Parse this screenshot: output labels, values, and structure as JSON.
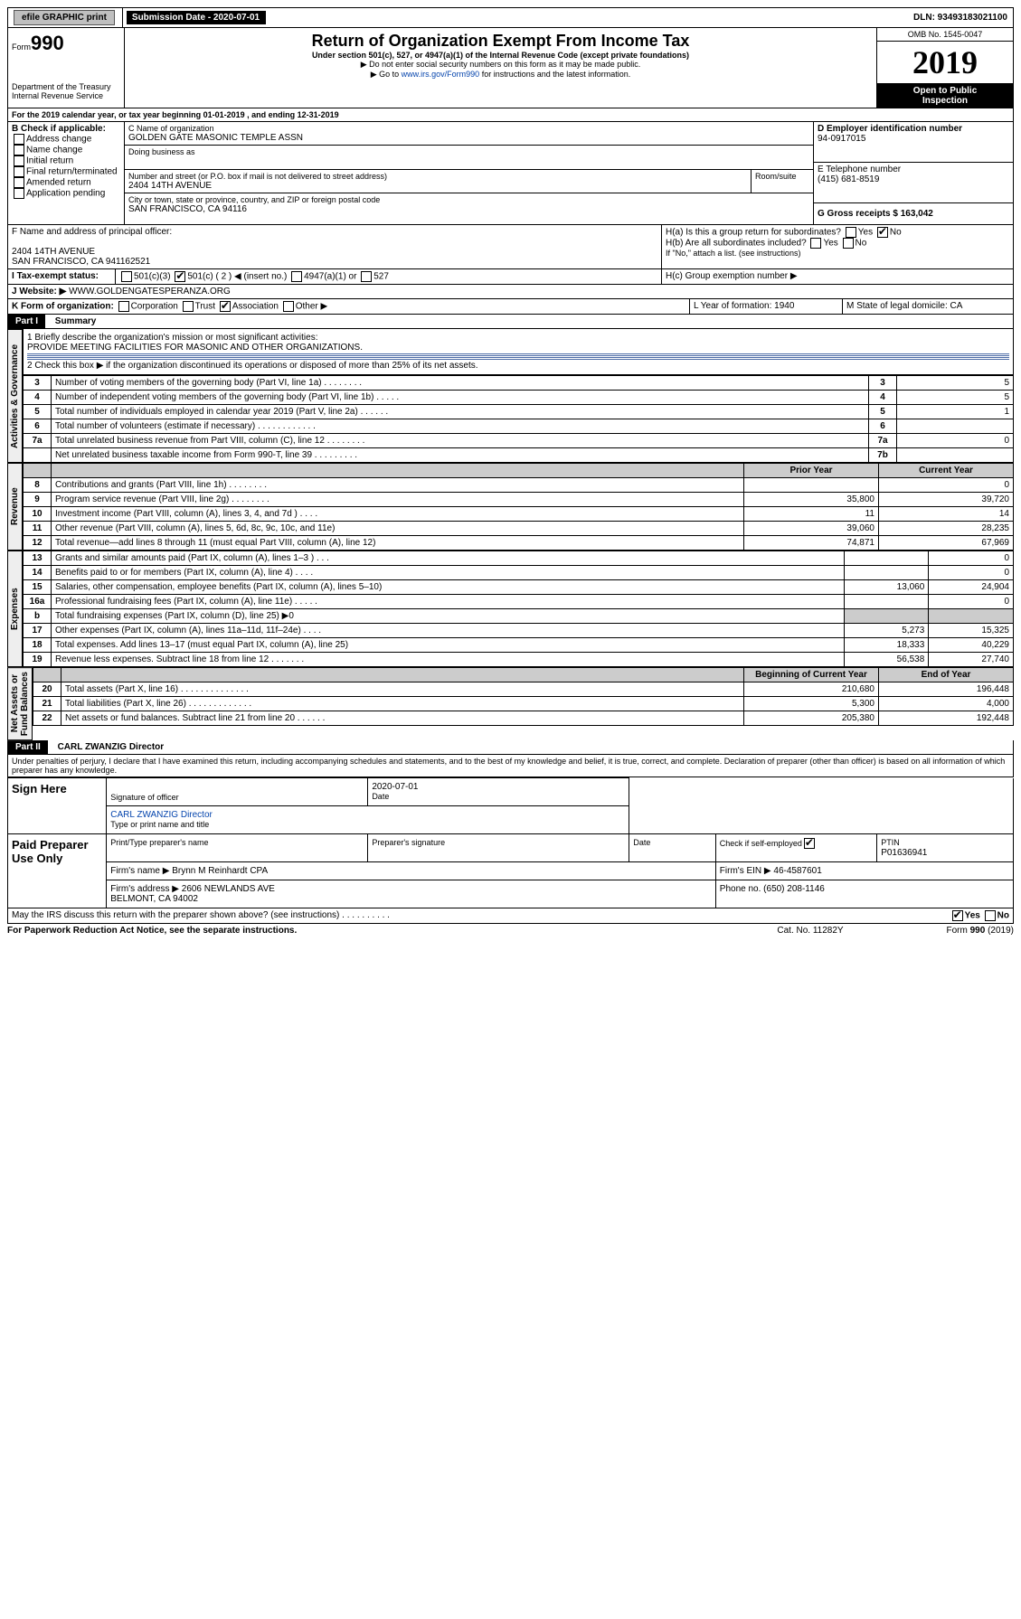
{
  "topbar": {
    "efile": "efile GRAPHIC print",
    "subdate_lbl": "Submission Date - 2020-07-01",
    "dln": "DLN: 93493183021100"
  },
  "header": {
    "form": "Form",
    "n990": "990",
    "title": "Return of Organization Exempt From Income Tax",
    "sub": "Under section 501(c), 527, or 4947(a)(1) of the Internal Revenue Code (except private foundations)",
    "note1": "▶ Do not enter social security numbers on this form as it may be made public.",
    "note2_pre": "▶ Go to ",
    "note2_link": "www.irs.gov/Form990",
    "note2_post": " for instructions and the latest information.",
    "dept": "Department of the Treasury",
    "irs": "Internal Revenue Service",
    "omb": "OMB No. 1545-0047",
    "year": "2019",
    "open": "Open to Public",
    "insp": "Inspection"
  },
  "period": "For the 2019 calendar year, or tax year beginning 01-01-2019    , and ending 12-31-2019",
  "B": {
    "hdr": "B Check if applicable:",
    "addr": "Address change",
    "name": "Name change",
    "init": "Initial return",
    "final": "Final return/terminated",
    "amend": "Amended return",
    "app": "Application pending"
  },
  "C": {
    "lbl": "C Name of organization",
    "org": "GOLDEN GATE MASONIC TEMPLE ASSN",
    "dba_lbl": "Doing business as",
    "street_lbl": "Number and street (or P.O. box if mail is not delivered to street address)",
    "room": "Room/suite",
    "street": "2404 14TH AVENUE",
    "city_lbl": "City or town, state or province, country, and ZIP or foreign postal code",
    "city": "SAN FRANCISCO, CA  94116"
  },
  "D": {
    "lbl": "D Employer identification number",
    "val": "94-0917015"
  },
  "E": {
    "lbl": "E Telephone number",
    "val": "(415) 681-8519"
  },
  "G": {
    "lbl": "G Gross receipts $ 163,042"
  },
  "F": {
    "lbl": "F  Name and address of principal officer:",
    "l1": "2404 14TH AVENUE",
    "l2": "SAN FRANCISCO, CA  941162521"
  },
  "H": {
    "a": "H(a)  Is this a group return for subordinates?",
    "b": "H(b)  Are all subordinates included?",
    "yes": "Yes",
    "no": "No",
    "note": "If \"No,\" attach a list. (see instructions)",
    "c": "H(c)  Group exemption number ▶"
  },
  "I": {
    "lbl": "Tax-exempt status:",
    "c3": "501(c)(3)",
    "c": "501(c) ( 2 ) ◀ (insert no.)",
    "a1": "4947(a)(1) or",
    "s527": "527"
  },
  "J": {
    "lbl": "Website: ▶",
    "val": "WWW.GOLDENGATESPERANZA.ORG"
  },
  "K": {
    "lbl": "K Form of organization:",
    "corp": "Corporation",
    "trust": "Trust",
    "assoc": "Association",
    "other": "Other ▶"
  },
  "L": {
    "lbl": "L Year of formation: 1940"
  },
  "M": {
    "lbl": "M State of legal domicile: CA"
  },
  "part1": {
    "title": "Part I",
    "name": "Summary",
    "q1": "1  Briefly describe the organization's mission or most significant activities:",
    "a1": "PROVIDE MEETING FACILITIES FOR MASONIC AND OTHER ORGANIZATIONS.",
    "q2": "2   Check this box ▶        if the organization discontinued its operations or disposed of more than 25% of its net assets.",
    "rows": [
      {
        "n": "3",
        "t": "Number of voting members of the governing body (Part VI, line 1a)   .    .    .    .    .    .    .    .",
        "c": "3",
        "v": "5"
      },
      {
        "n": "4",
        "t": "Number of independent voting members of the governing body (Part VI, line 1b)   .    .    .    .    .",
        "c": "4",
        "v": "5"
      },
      {
        "n": "5",
        "t": "Total number of individuals employed in calendar year 2019 (Part V, line 2a)   .    .    .    .    .    .",
        "c": "5",
        "v": "1"
      },
      {
        "n": "6",
        "t": "Total number of volunteers (estimate if necessary)   .    .    .    .    .    .    .    .    .    .    .    .",
        "c": "6",
        "v": ""
      },
      {
        "n": "7a",
        "t": "Total unrelated business revenue from Part VIII, column (C), line 12   .    .    .    .    .    .    .    .",
        "c": "7a",
        "v": "0"
      },
      {
        "n": "",
        "t": "Net unrelated business taxable income from Form 990-T, line 39   .    .    .    .    .    .    .    .    .",
        "c": "7b",
        "v": ""
      }
    ],
    "colPrior": "Prior Year",
    "colCurr": "Current Year",
    "rev": [
      {
        "n": "8",
        "t": "Contributions and grants (Part VIII, line 1h)   .    .    .    .    .    .    .    .",
        "p": "",
        "c": "0"
      },
      {
        "n": "9",
        "t": "Program service revenue (Part VIII, line 2g)   .    .    .    .    .    .    .    .",
        "p": "35,800",
        "c": "39,720"
      },
      {
        "n": "10",
        "t": "Investment income (Part VIII, column (A), lines 3, 4, and 7d )   .    .    .    .",
        "p": "11",
        "c": "14"
      },
      {
        "n": "11",
        "t": "Other revenue (Part VIII, column (A), lines 5, 6d, 8c, 9c, 10c, and 11e)",
        "p": "39,060",
        "c": "28,235"
      },
      {
        "n": "12",
        "t": "Total revenue—add lines 8 through 11 (must equal Part VIII, column (A), line 12)",
        "p": "74,871",
        "c": "67,969"
      }
    ],
    "exp": [
      {
        "n": "13",
        "t": "Grants and similar amounts paid (Part IX, column (A), lines 1–3 )   .    .    .",
        "p": "",
        "c": "0"
      },
      {
        "n": "14",
        "t": "Benefits paid to or for members (Part IX, column (A), line 4)   .    .    .    .",
        "p": "",
        "c": "0"
      },
      {
        "n": "15",
        "t": "Salaries, other compensation, employee benefits (Part IX, column (A), lines 5–10)",
        "p": "13,060",
        "c": "24,904"
      },
      {
        "n": "16a",
        "t": "Professional fundraising fees (Part IX, column (A), line 11e)   .    .    .    .    .",
        "p": "",
        "c": "0"
      },
      {
        "n": "b",
        "t": "Total fundraising expenses (Part IX, column (D), line 25) ▶0",
        "p": "—",
        "c": "—"
      },
      {
        "n": "17",
        "t": "Other expenses (Part IX, column (A), lines 11a–11d, 11f–24e)   .    .    .    .",
        "p": "5,273",
        "c": "15,325"
      },
      {
        "n": "18",
        "t": "Total expenses. Add lines 13–17 (must equal Part IX, column (A), line 25)",
        "p": "18,333",
        "c": "40,229"
      },
      {
        "n": "19",
        "t": "Revenue less expenses. Subtract line 18 from line 12   .    .    .    .    .    .    .",
        "p": "56,538",
        "c": "27,740"
      }
    ],
    "colBeg": "Beginning of Current Year",
    "colEnd": "End of Year",
    "net": [
      {
        "n": "20",
        "t": "Total assets (Part X, line 16)   .    .    .    .    .    .    .    .    .    .    .    .    .    .",
        "p": "210,680",
        "c": "196,448"
      },
      {
        "n": "21",
        "t": "Total liabilities (Part X, line 26)   .    .    .    .    .    .    .    .    .    .    .    .    .",
        "p": "5,300",
        "c": "4,000"
      },
      {
        "n": "22",
        "t": "Net assets or fund balances. Subtract line 21 from line 20   .    .    .    .    .    .",
        "p": "205,380",
        "c": "192,448"
      }
    ],
    "side": {
      "ag": "Activities & Governance",
      "rev": "Revenue",
      "exp": "Expenses",
      "net": "Net Assets or\nFund Balances"
    }
  },
  "part2": {
    "title": "Part II",
    "name": "CARL ZWANZIG  Director",
    "decl": "Under penalties of perjury, I declare that I have examined this return, including accompanying schedules and statements, and to the best of my knowledge and belief, it is true, correct, and complete. Declaration of preparer (other than officer) is based on all information of which preparer has any knowledge.",
    "sign": "Sign Here",
    "sigoff": "Signature of officer",
    "date": "Date",
    "dateval": "2020-07-01",
    "type": "Type or print name and title",
    "paid": "Paid Preparer Use Only",
    "pt": "Print/Type preparer's name",
    "ps": "Preparer's signature",
    "chk": "Check         if self-employed",
    "ptin": "PTIN",
    "ptinval": "P01636941",
    "firm": "Firm's name    ▶ Brynn M Reinhardt CPA",
    "ein": "Firm's EIN ▶ 46-4587601",
    "addr": "Firm's address ▶ 2606 NEWLANDS AVE",
    "addr2": "BELMONT, CA  94002",
    "phone": "Phone no. (650) 208-1146",
    "discuss": "May the IRS discuss this return with the preparer shown above? (see instructions)    .    .    .    .    .    .    .    .    .    .",
    "pra": "For Paperwork Reduction Act Notice, see the separate instructions.",
    "cat": "Cat. No. 11282Y",
    "ff": "Form 990 (2019)"
  }
}
